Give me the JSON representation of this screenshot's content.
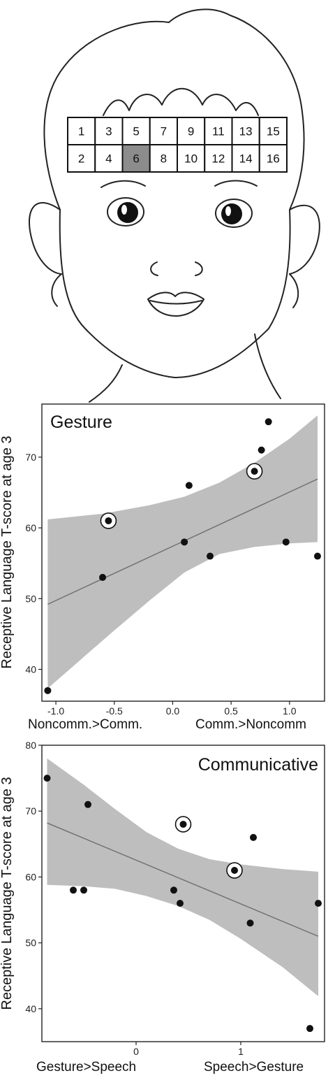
{
  "head_grid": {
    "top_row": [
      "1",
      "3",
      "5",
      "7",
      "9",
      "11",
      "13",
      "15"
    ],
    "bottom_row": [
      "2",
      "4",
      "6",
      "8",
      "10",
      "12",
      "14",
      "16"
    ],
    "highlighted": "6",
    "highlight_color": "#8c8c8c"
  },
  "chart_data": [
    {
      "type": "scatter",
      "title": "Gesture",
      "ylabel": "Receptive Language T-score at age 3",
      "xlabel_left": "Noncomm.>Comm.",
      "xlabel_right": "Comm.>Noncomm",
      "xlim": [
        -1.12,
        1.3
      ],
      "ylim": [
        35.5,
        77.5
      ],
      "xticks": [
        -1.0,
        -0.5,
        0.0,
        0.5,
        1.0
      ],
      "xtick_labels": [
        "-1.0",
        "-0.5",
        "0.0",
        "0.5",
        "1.0"
      ],
      "yticks": [
        40,
        50,
        60,
        70
      ],
      "points": [
        {
          "x": -1.07,
          "y": 37,
          "circled": false
        },
        {
          "x": -0.6,
          "y": 53,
          "circled": false
        },
        {
          "x": -0.55,
          "y": 61,
          "circled": true
        },
        {
          "x": 0.1,
          "y": 58,
          "circled": false
        },
        {
          "x": 0.14,
          "y": 66,
          "circled": false
        },
        {
          "x": 0.32,
          "y": 56,
          "circled": false
        },
        {
          "x": 0.7,
          "y": 68,
          "circled": true
        },
        {
          "x": 0.76,
          "y": 71,
          "circled": false
        },
        {
          "x": 0.82,
          "y": 75,
          "circled": false
        },
        {
          "x": 0.97,
          "y": 58,
          "circled": false
        },
        {
          "x": 1.24,
          "y": 56,
          "circled": false
        }
      ],
      "fit_line": {
        "x": [
          -1.07,
          1.24
        ],
        "y": [
          49.2,
          66.9
        ]
      },
      "band_upper": [
        {
          "x": -1.07,
          "y": 61.2
        },
        {
          "x": -0.6,
          "y": 62.0
        },
        {
          "x": -0.2,
          "y": 63.2
        },
        {
          "x": 0.1,
          "y": 64.4
        },
        {
          "x": 0.4,
          "y": 66.4
        },
        {
          "x": 0.7,
          "y": 69.2
        },
        {
          "x": 1.0,
          "y": 72.6
        },
        {
          "x": 1.24,
          "y": 75.9
        }
      ],
      "band_lower": [
        {
          "x": -1.07,
          "y": 37.3
        },
        {
          "x": -0.8,
          "y": 41.2
        },
        {
          "x": -0.5,
          "y": 45.5
        },
        {
          "x": -0.2,
          "y": 49.7
        },
        {
          "x": 0.1,
          "y": 53.7
        },
        {
          "x": 0.4,
          "y": 56.3
        },
        {
          "x": 0.7,
          "y": 57.3
        },
        {
          "x": 1.0,
          "y": 57.8
        },
        {
          "x": 1.24,
          "y": 58.0
        }
      ],
      "colors": {
        "point": "#111111",
        "band": "#bebebe",
        "line": "#6e6e6e"
      }
    },
    {
      "type": "scatter",
      "title": "Communicative",
      "ylabel": "Receptive Language T-score at age 3",
      "xlabel_left": "Gesture>Speech",
      "xlabel_right": "Speech>Gesture",
      "xlim": [
        -0.9,
        1.8
      ],
      "ylim": [
        35,
        80
      ],
      "xticks": [
        0,
        1
      ],
      "xtick_labels": [
        "0",
        "1"
      ],
      "yticks": [
        40,
        50,
        60,
        70,
        80
      ],
      "points": [
        {
          "x": -0.85,
          "y": 75,
          "circled": false
        },
        {
          "x": -0.6,
          "y": 58,
          "circled": false
        },
        {
          "x": -0.5,
          "y": 58,
          "circled": false
        },
        {
          "x": -0.46,
          "y": 71,
          "circled": false
        },
        {
          "x": 0.36,
          "y": 58,
          "circled": false
        },
        {
          "x": 0.42,
          "y": 56,
          "circled": false
        },
        {
          "x": 0.45,
          "y": 68,
          "circled": true
        },
        {
          "x": 0.94,
          "y": 61,
          "circled": true
        },
        {
          "x": 1.09,
          "y": 53,
          "circled": false
        },
        {
          "x": 1.12,
          "y": 66,
          "circled": false
        },
        {
          "x": 1.66,
          "y": 37,
          "circled": false
        },
        {
          "x": 1.74,
          "y": 56,
          "circled": false
        }
      ],
      "fit_line": {
        "x": [
          -0.85,
          1.74
        ],
        "y": [
          68.2,
          51.0
        ]
      },
      "band_upper": [
        {
          "x": -0.85,
          "y": 78.0
        },
        {
          "x": -0.5,
          "y": 74.0
        },
        {
          "x": -0.2,
          "y": 70.3
        },
        {
          "x": 0.1,
          "y": 66.8
        },
        {
          "x": 0.4,
          "y": 64.3
        },
        {
          "x": 0.7,
          "y": 62.7
        },
        {
          "x": 1.0,
          "y": 61.9
        },
        {
          "x": 1.4,
          "y": 61.2
        },
        {
          "x": 1.74,
          "y": 60.8
        }
      ],
      "band_lower": [
        {
          "x": -0.85,
          "y": 58.8
        },
        {
          "x": -0.5,
          "y": 58.6
        },
        {
          "x": -0.2,
          "y": 58.2
        },
        {
          "x": 0.1,
          "y": 57.1
        },
        {
          "x": 0.4,
          "y": 55.6
        },
        {
          "x": 0.7,
          "y": 53.5
        },
        {
          "x": 1.0,
          "y": 50.6
        },
        {
          "x": 1.4,
          "y": 46.3
        },
        {
          "x": 1.74,
          "y": 41.9
        }
      ],
      "colors": {
        "point": "#111111",
        "band": "#bebebe",
        "line": "#6e6e6e"
      }
    }
  ]
}
